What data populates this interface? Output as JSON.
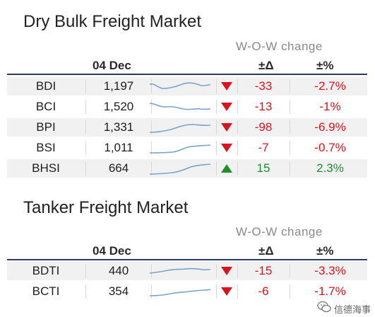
{
  "dry_bulk": {
    "title": "Dry Bulk Freight Market",
    "wow_label": "W-O-W change",
    "date_header": "04 Dec",
    "chg_header": "±Δ",
    "pct_header": "±%",
    "rows": [
      {
        "index": "BDI",
        "value": "1,197",
        "change": "-33",
        "pct": "-2.7%",
        "direction": "down"
      },
      {
        "index": "BCI",
        "value": "1,520",
        "change": "-13",
        "pct": "-1%",
        "direction": "down"
      },
      {
        "index": "BPI",
        "value": "1,331",
        "change": "-98",
        "pct": "-6.9%",
        "direction": "down"
      },
      {
        "index": "BSI",
        "value": "1,011",
        "change": "-7",
        "pct": "-0.7%",
        "direction": "down"
      },
      {
        "index": "BHSI",
        "value": "664",
        "change": "15",
        "pct": "2.3%",
        "direction": "up"
      }
    ]
  },
  "tanker": {
    "title": "Tanker Freight Market",
    "wow_label": "W-O-W change",
    "date_header": "04 Dec",
    "chg_header": "±Δ",
    "pct_header": "±%",
    "rows": [
      {
        "index": "BDTI",
        "value": "440",
        "change": "-15",
        "pct": "-3.3%",
        "direction": "down"
      },
      {
        "index": "BCTI",
        "value": "354",
        "change": "-6",
        "pct": "-1.7%",
        "direction": "down"
      }
    ]
  },
  "watermark": {
    "text": "信德海事",
    "icon": "wechat-icon"
  },
  "colors": {
    "down": "#d8151e",
    "up": "#1f8f2a",
    "sparkline": "#7ba3c9",
    "rule": "#2b3a67"
  }
}
